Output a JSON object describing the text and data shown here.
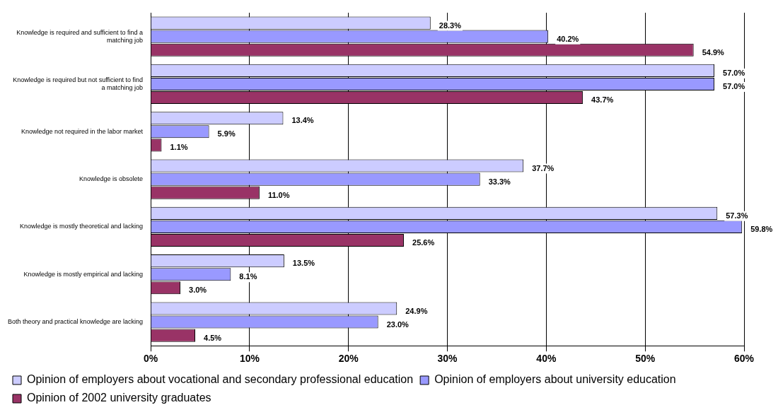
{
  "chart_data": {
    "type": "bar",
    "orientation": "horizontal",
    "categories": [
      "Knowledge is required and sufficient to find a matching job",
      "Knowledge is required but not sufficient to find a matching job",
      "Knowledge not required in the labor market",
      "Knowledge is obsolete",
      "Knowledge is mostly theoretical and lacking",
      "Knowledge is mostly empirical and lacking",
      "Both theory and practical knowledge are lacking"
    ],
    "series": [
      {
        "name": "Opinion of employers about vocational and secondary professional education",
        "color": "#ccccff",
        "values": [
          28.3,
          57.0,
          13.4,
          37.7,
          57.3,
          13.5,
          24.9
        ],
        "value_labels": [
          "28.3%",
          "57.0%",
          "13.4%",
          "37.7%",
          "57.3%",
          "13.5%",
          "24.9%"
        ]
      },
      {
        "name": "Opinion of employers about university education",
        "color": "#9999ff",
        "values": [
          40.2,
          57.0,
          5.9,
          33.3,
          59.8,
          8.1,
          23.0
        ],
        "value_labels": [
          "40.2%",
          "57.0%",
          "5.9%",
          "33.3%",
          "59.8%",
          "8.1%",
          "23.0%"
        ]
      },
      {
        "name": "Opinion of 2002 university graduates",
        "color": "#993366",
        "values": [
          54.9,
          43.7,
          1.1,
          11.0,
          25.6,
          3.0,
          4.5
        ],
        "value_labels": [
          "54.9%",
          "43.7%",
          "1.1%",
          "11.0%",
          "25.6%",
          "3.0%",
          "4.5%"
        ]
      }
    ],
    "xlim": [
      0,
      60
    ],
    "xticks": [
      {
        "value": 0,
        "label": "0%"
      },
      {
        "value": 10,
        "label": "10%"
      },
      {
        "value": 20,
        "label": "20%"
      },
      {
        "value": 30,
        "label": "30%"
      },
      {
        "value": 40,
        "label": "40%"
      },
      {
        "value": 50,
        "label": "50%"
      },
      {
        "value": 60,
        "label": "60%"
      }
    ],
    "grid": "x",
    "legend": "bottom"
  }
}
